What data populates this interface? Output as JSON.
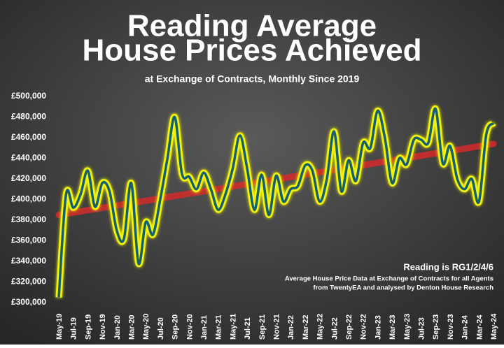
{
  "chart_data": {
    "type": "line",
    "title_lines": [
      "Reading Average",
      "House Prices Achieved"
    ],
    "subtitle": "at Exchange of Contracts, Monthly Since 2019",
    "annotations": [
      "Reading is RG1/2/4/6",
      "Average House Price Data at Exchange of Contracts for all Agents",
      "from TwentyEA and analysed by Denton House Research"
    ],
    "categories": [
      "May-19",
      null,
      "Jul-19",
      null,
      "Sep-19",
      null,
      "Nov-19",
      null,
      "Jan-20",
      null,
      "Mar-20",
      null,
      "May-20",
      null,
      "Jul-20",
      null,
      "Sep-20",
      null,
      "Nov-20",
      null,
      "Jan-21",
      null,
      "Mar-21",
      null,
      "May-21",
      null,
      "Jul-21",
      null,
      "Sep-21",
      null,
      "Nov-21",
      null,
      "Jan-22",
      null,
      "Mar-22",
      null,
      "May-22",
      null,
      "Jul-22",
      null,
      "Sep-22",
      null,
      "Nov-22",
      null,
      "Jan-23",
      null,
      "Mar-23",
      null,
      "May-23",
      null,
      "Jul-23",
      null,
      "Sep-23",
      null,
      "Nov-23",
      null,
      "Jan-24",
      null,
      "Mar-24",
      null,
      "May-24"
    ],
    "series": [
      {
        "color": "#f2f20a",
        "values": [
          305000,
          405000,
          392000,
          405000,
          428000,
          393000,
          416000,
          408000,
          370000,
          362000,
          416000,
          338000,
          378000,
          366000,
          400000,
          440000,
          480000,
          425000,
          422000,
          410000,
          426000,
          410000,
          390000,
          405000,
          430000,
          462000,
          430000,
          390000,
          424000,
          385000,
          423000,
          398000,
          410000,
          413000,
          433000,
          428000,
          398000,
          420000,
          466000,
          408000,
          438000,
          418000,
          455000,
          450000,
          486000,
          460000,
          416000,
          440000,
          434000,
          458000,
          458000,
          455000,
          488000,
          435000,
          452000,
          420000,
          410000,
          420000,
          398000,
          463000,
          474000
        ]
      },
      {
        "color": "#d42a2a",
        "values": [
          385000,
          386150,
          387300,
          388450,
          389600,
          390750,
          391900,
          393050,
          394200,
          395350,
          396500,
          397650,
          398800,
          399950,
          401100,
          402250,
          403400,
          404550,
          405700,
          406850,
          408000,
          409150,
          410300,
          411450,
          412600,
          413750,
          414900,
          416050,
          417200,
          418350,
          419500,
          420650,
          421800,
          422950,
          424100,
          425250,
          426400,
          427550,
          428700,
          429850,
          431000,
          432150,
          433300,
          434450,
          435600,
          436750,
          437900,
          439050,
          440200,
          441350,
          442500,
          443650,
          444800,
          445950,
          447100,
          448250,
          449400,
          450550,
          451700,
          452850,
          454000
        ]
      }
    ],
    "line_core_color": "#155f70",
    "ylim": [
      300000,
      500000
    ],
    "yticks": [
      {
        "value": 300000,
        "label": "£300,000"
      },
      {
        "value": 320000,
        "label": "£320,000"
      },
      {
        "value": 340000,
        "label": "£340,000"
      },
      {
        "value": 360000,
        "label": "£360,000"
      },
      {
        "value": 380000,
        "label": "£380,000"
      },
      {
        "value": 400000,
        "label": "£400,000"
      },
      {
        "value": 420000,
        "label": "£420,000"
      },
      {
        "value": 440000,
        "label": "£440,000"
      },
      {
        "value": 460000,
        "label": "£460,000"
      },
      {
        "value": 480000,
        "label": "£480,000"
      },
      {
        "value": 500000,
        "label": "£500,000"
      }
    ],
    "grid": false
  }
}
